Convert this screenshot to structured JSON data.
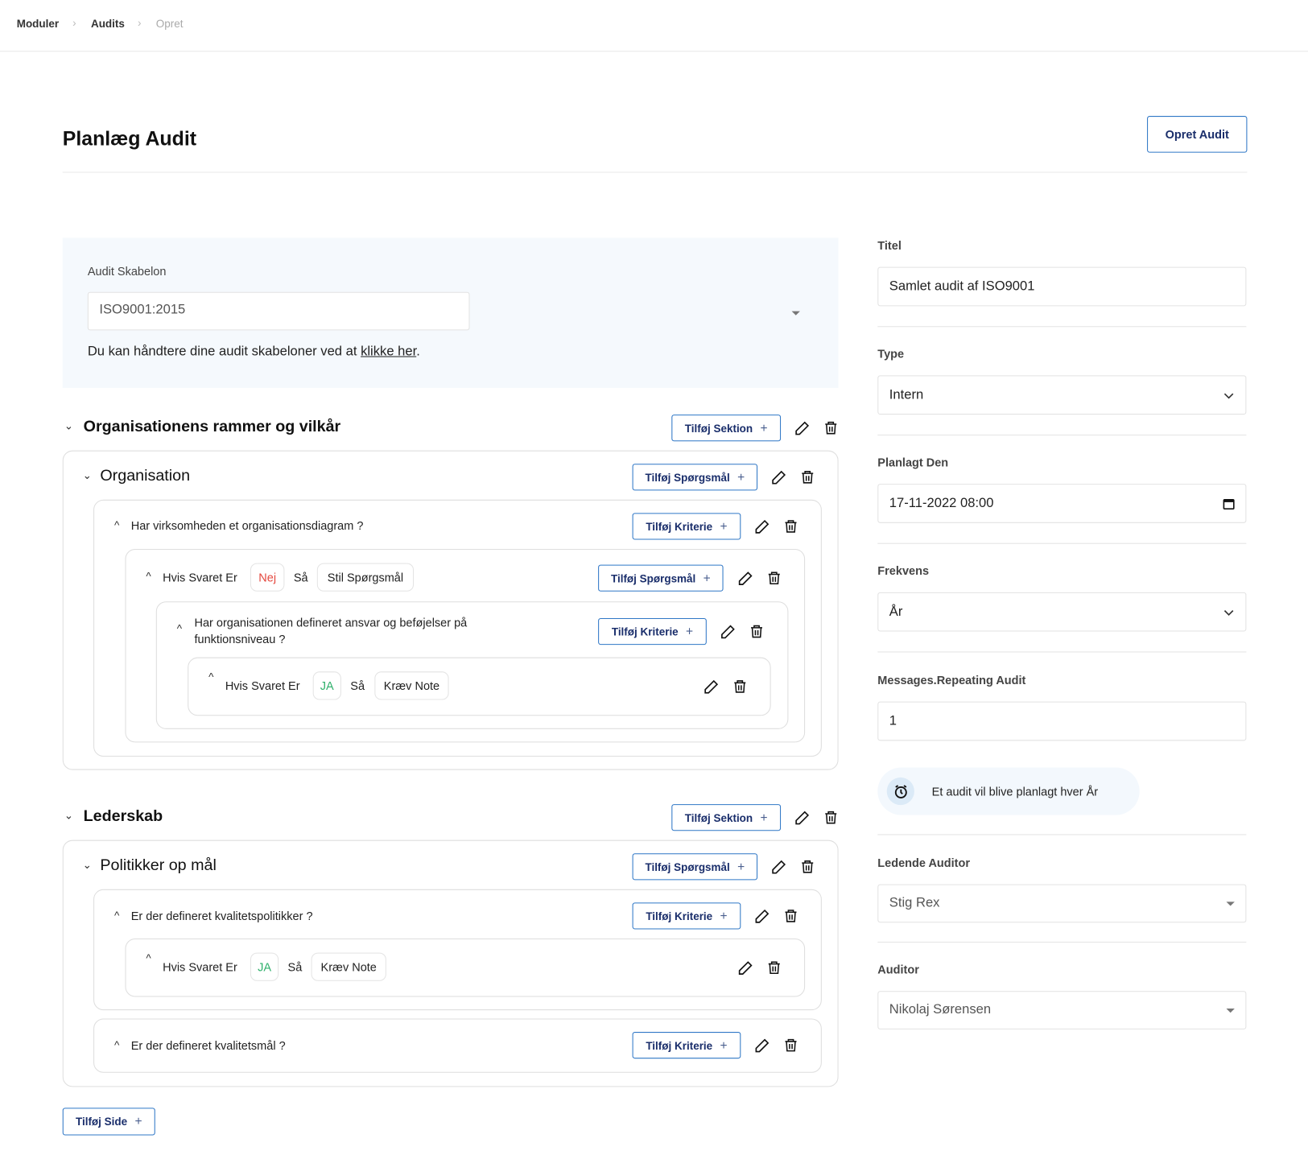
{
  "breadcrumb": [
    "Moduler",
    "Audits",
    "Opret"
  ],
  "page_title": "Planlæg Audit",
  "create_button": "Opret Audit",
  "template": {
    "label": "Audit Skabelon",
    "value": "ISO9001:2015",
    "help_text": "Du kan håndtere dine audit skabeloner ved at ",
    "help_link": "klikke her",
    "help_end": "."
  },
  "labels": {
    "add_section": "Tilføj Sektion",
    "add_question": "Tilføj Spørgsmål",
    "add_criteria": "Tilføj Kriterie",
    "add_page": "Tilføj Side",
    "if_answer": "Hvis Svaret Er",
    "then": "Så"
  },
  "sections": [
    {
      "title": "Organisationens rammer og vilkår",
      "group": "Organisation",
      "q1": "Har virksomheden et organisationsdiagram ?",
      "rule1": {
        "answer": "Nej",
        "action": "Stil Spørgsmål"
      },
      "q2": "Har organisationen defineret ansvar og beføjelser på funktionsniveau ?",
      "rule2": {
        "answer": "JA",
        "action": "Kræv Note"
      }
    },
    {
      "title": "Lederskab",
      "group": "Politikker op mål",
      "q1": "Er der defineret kvalitetspolitikker ?",
      "rule1": {
        "answer": "JA",
        "action": "Kræv Note"
      },
      "q2": "Er der defineret kvalitetsmål ?"
    }
  ],
  "form": {
    "title_label": "Titel",
    "title_value": "Samlet audit af ISO9001",
    "type_label": "Type",
    "type_value": "Intern",
    "date_label": "Planlagt Den",
    "date_value": "17-11-2022 08:00",
    "freq_label": "Frekvens",
    "freq_value": "År",
    "repeat_label": "Messages.Repeating Audit",
    "repeat_value": "1",
    "info": "Et audit vil blive planlagt hver År",
    "lead_label": "Ledende Auditor",
    "lead_value": "Stig Rex",
    "auditor_label": "Auditor",
    "auditor_value": "Nikolaj Sørensen"
  },
  "colors": {
    "accent": "#2f77c6",
    "button_text": "#1a2e6b",
    "no": "#e5483f",
    "yes": "#2fb06b",
    "panel": "#f5f9fd"
  }
}
